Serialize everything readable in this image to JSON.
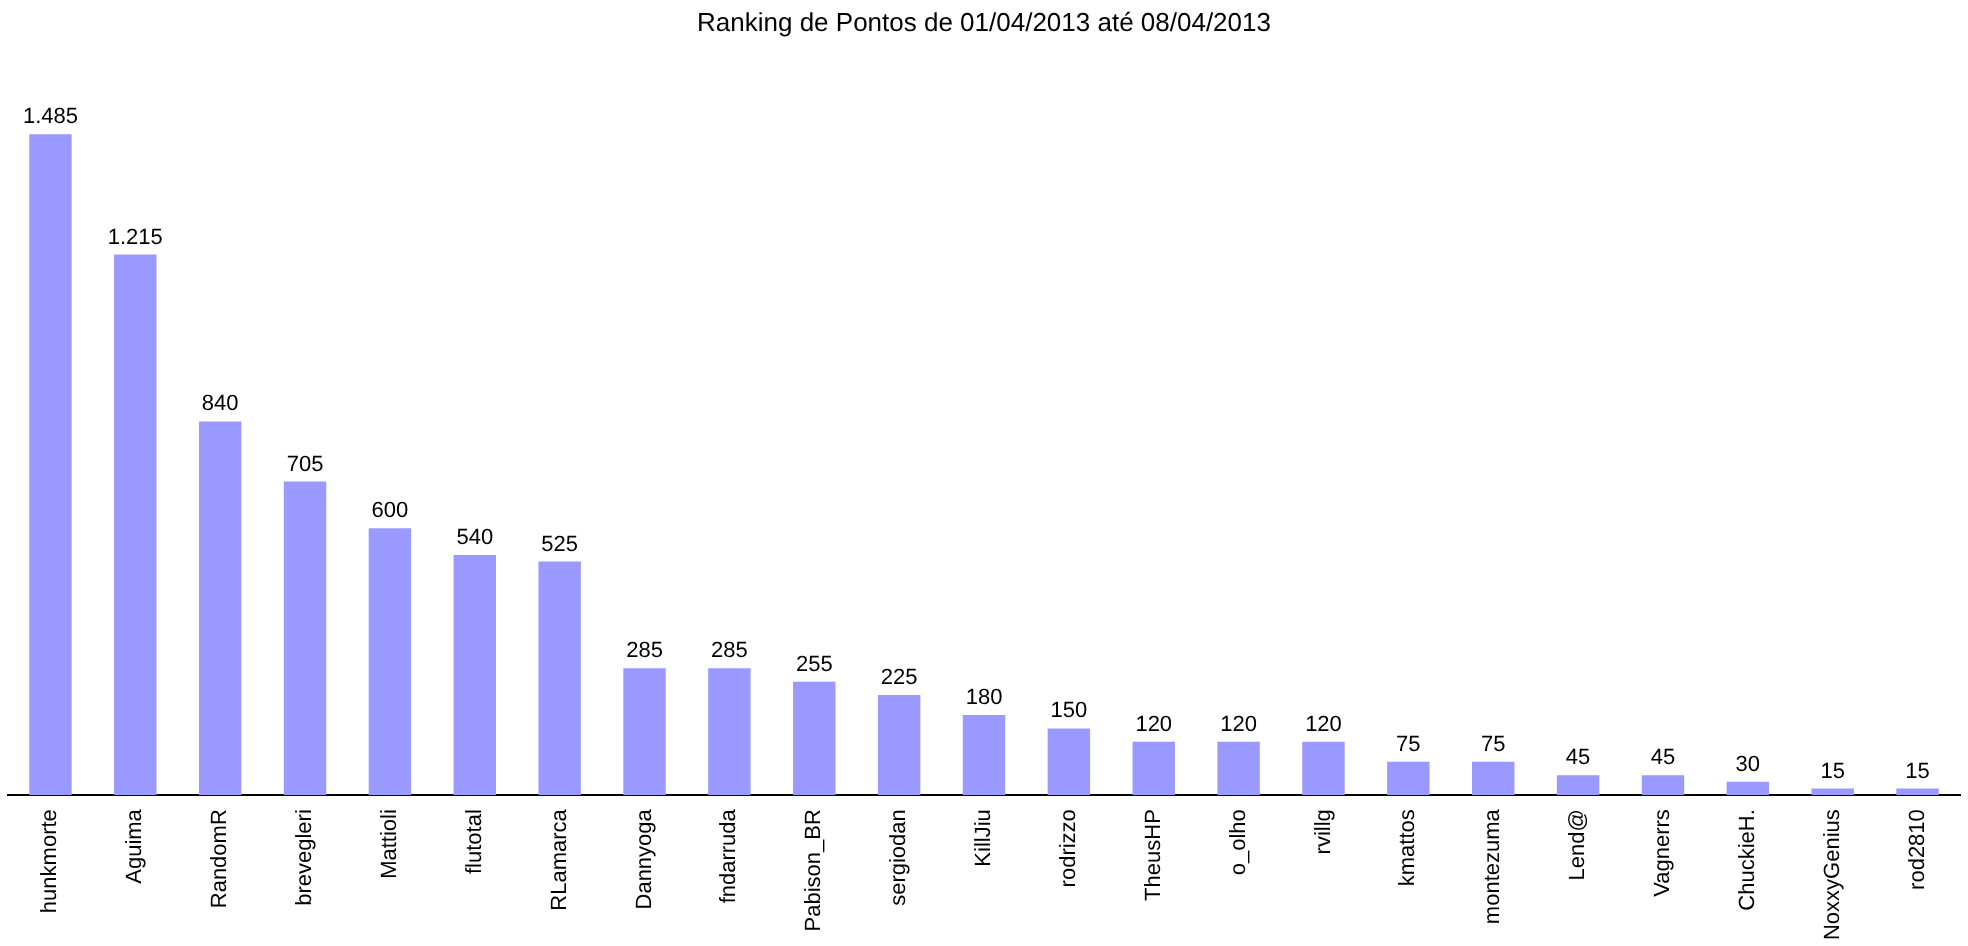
{
  "chart_data": {
    "type": "bar",
    "title": "Ranking de Pontos de 01/04/2013 até 08/04/2013",
    "categories": [
      "hunkmorte",
      "Aguima",
      "RandomR",
      "brevegleri",
      "Mattioli",
      "flutotal",
      "RLamarca",
      "Dannyoga",
      "fndarruda",
      "Pabison_BR",
      "sergiodan",
      "KillJiu",
      "rodrizzo",
      "TheusHP",
      "o_olho",
      "rvillg",
      "kmattos",
      "montezuma",
      "Lend@",
      "Vagnerrs",
      "ChuckieH.",
      "NoxxyGenius",
      "rod2810"
    ],
    "values": [
      1485,
      1215,
      840,
      705,
      600,
      540,
      525,
      285,
      285,
      255,
      225,
      180,
      150,
      120,
      120,
      120,
      75,
      75,
      45,
      45,
      30,
      15,
      15
    ],
    "value_labels": [
      "1.485",
      "1.215",
      "840",
      "705",
      "600",
      "540",
      "525",
      "285",
      "285",
      "255",
      "225",
      "180",
      "150",
      "120",
      "120",
      "120",
      "75",
      "75",
      "45",
      "45",
      "30",
      "15",
      "15"
    ],
    "color": "#9999ff",
    "grid": false,
    "legend": false,
    "tick_labels": "x"
  }
}
